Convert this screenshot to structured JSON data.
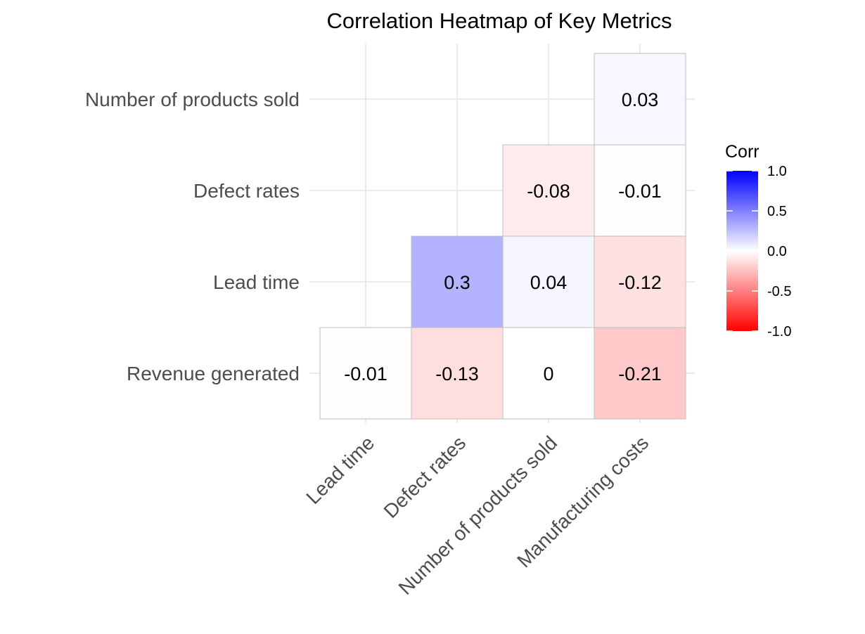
{
  "chart_data": {
    "type": "heatmap",
    "title": "Correlation Heatmap of Key Metrics",
    "x_categories": [
      "Lead time",
      "Defect rates",
      "Number of products sold",
      "Manufacturing costs"
    ],
    "y_categories": [
      "Revenue generated",
      "Lead time",
      "Defect rates",
      "Number of products sold"
    ],
    "cells": [
      {
        "x": "Lead time",
        "y": "Revenue generated",
        "value": -0.01,
        "label": "-0.01"
      },
      {
        "x": "Defect rates",
        "y": "Revenue generated",
        "value": -0.13,
        "label": "-0.13"
      },
      {
        "x": "Number of products sold",
        "y": "Revenue generated",
        "value": 0,
        "label": "0"
      },
      {
        "x": "Manufacturing costs",
        "y": "Revenue generated",
        "value": -0.21,
        "label": "-0.21"
      },
      {
        "x": "Defect rates",
        "y": "Lead time",
        "value": 0.3,
        "label": "0.3"
      },
      {
        "x": "Number of products sold",
        "y": "Lead time",
        "value": 0.04,
        "label": "0.04"
      },
      {
        "x": "Manufacturing costs",
        "y": "Lead time",
        "value": -0.12,
        "label": "-0.12"
      },
      {
        "x": "Number of products sold",
        "y": "Defect rates",
        "value": -0.08,
        "label": "-0.08"
      },
      {
        "x": "Manufacturing costs",
        "y": "Defect rates",
        "value": -0.01,
        "label": "-0.01"
      },
      {
        "x": "Manufacturing costs",
        "y": "Number of products sold",
        "value": 0.03,
        "label": "0.03"
      }
    ],
    "legend": {
      "title": "Corr",
      "placement": "right",
      "range": [
        -1,
        1
      ],
      "ticks": [
        1.0,
        0.5,
        0.0,
        -0.5,
        -1.0
      ],
      "tick_labels": [
        "1.0",
        "0.5",
        "0.0",
        "-0.5",
        "-1.0"
      ],
      "colors": {
        "low": "#ff0000",
        "mid": "#ffffff",
        "high": "#0000ff"
      }
    },
    "grid": true
  }
}
